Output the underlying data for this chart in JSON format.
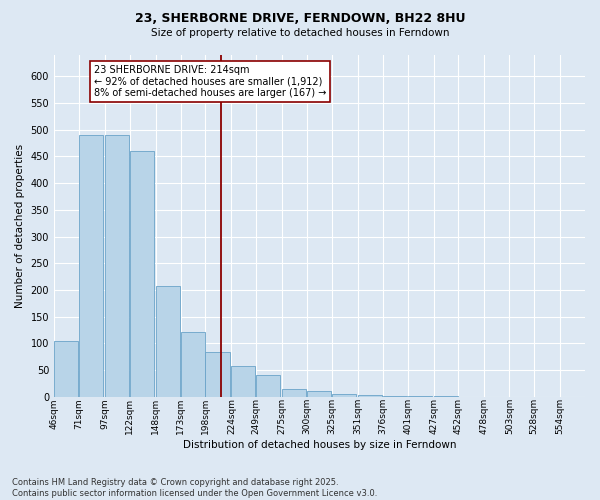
{
  "title": "23, SHERBORNE DRIVE, FERNDOWN, BH22 8HU",
  "subtitle": "Size of property relative to detached houses in Ferndown",
  "xlabel": "Distribution of detached houses by size in Ferndown",
  "ylabel": "Number of detached properties",
  "footer_line1": "Contains HM Land Registry data © Crown copyright and database right 2025.",
  "footer_line2": "Contains public sector information licensed under the Open Government Licence v3.0.",
  "bar_color": "#b8d4e8",
  "bar_edge_color": "#6aa3c8",
  "background_color": "#dde8f3",
  "grid_color": "#ffffff",
  "vline_color": "#8b0000",
  "vline_x": 214,
  "annotation_title": "23 SHERBORNE DRIVE: 214sqm",
  "annotation_line1": "← 92% of detached houses are smaller (1,912)",
  "annotation_line2": "8% of semi-detached houses are larger (167) →",
  "annotation_box_color": "#ffffff",
  "annotation_box_edge_color": "#8b0000",
  "categories": [
    "46sqm",
    "71sqm",
    "97sqm",
    "122sqm",
    "148sqm",
    "173sqm",
    "198sqm",
    "224sqm",
    "249sqm",
    "275sqm",
    "300sqm",
    "325sqm",
    "351sqm",
    "376sqm",
    "401sqm",
    "427sqm",
    "452sqm",
    "478sqm",
    "503sqm",
    "528sqm",
    "554sqm"
  ],
  "bin_edges": [
    46,
    71,
    97,
    122,
    148,
    173,
    198,
    224,
    249,
    275,
    300,
    325,
    351,
    376,
    401,
    427,
    452,
    478,
    503,
    528,
    554
  ],
  "bin_width": 25,
  "values": [
    105,
    490,
    490,
    460,
    207,
    122,
    83,
    57,
    40,
    15,
    10,
    5,
    3,
    2,
    1,
    1,
    0,
    0,
    0,
    0,
    0
  ],
  "ylim": [
    0,
    640
  ],
  "yticks": [
    0,
    50,
    100,
    150,
    200,
    250,
    300,
    350,
    400,
    450,
    500,
    550,
    600
  ]
}
